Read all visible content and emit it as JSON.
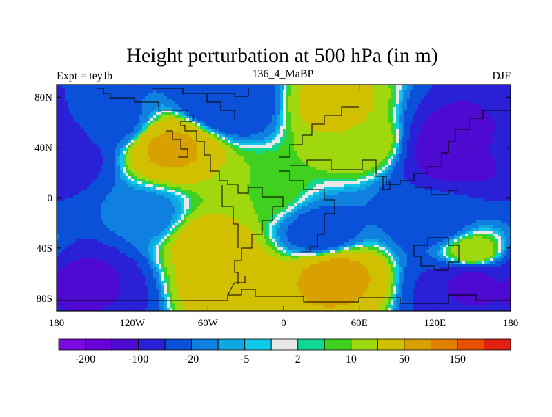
{
  "chart_data": {
    "type": "heatmap",
    "title": "Height perturbation at 500 hPa (in m)",
    "left_label": "Expt = teyJb",
    "center_label": "136_4_MaBP",
    "right_label": "DJF",
    "x_ticks": [
      {
        "value": -180,
        "label": "180"
      },
      {
        "value": -120,
        "label": "120W"
      },
      {
        "value": -60,
        "label": "60W"
      },
      {
        "value": 0,
        "label": "0"
      },
      {
        "value": 60,
        "label": "60E"
      },
      {
        "value": 120,
        "label": "120E"
      },
      {
        "value": 180,
        "label": "180"
      }
    ],
    "y_ticks": [
      {
        "value": 80,
        "label": "80N"
      },
      {
        "value": 40,
        "label": "40N"
      },
      {
        "value": 0,
        "label": "0"
      },
      {
        "value": -40,
        "label": "40S"
      },
      {
        "value": -80,
        "label": "80S"
      }
    ],
    "xlim": [
      -180,
      180
    ],
    "ylim": [
      -90,
      90
    ],
    "colorbar": {
      "colors": [
        "#7a0ae0",
        "#6a00d8",
        "#4e0ad0",
        "#2a20d8",
        "#0a50d8",
        "#1080e0",
        "#10a8e0",
        "#10c8e8",
        "#e8e8e8",
        "#10d890",
        "#40d020",
        "#a0d810",
        "#d0c000",
        "#d8a000",
        "#e08000",
        "#e85000",
        "#e02010"
      ],
      "tick_labels": [
        {
          "after_box": 1,
          "label": "-200"
        },
        {
          "after_box": 3,
          "label": "-100"
        },
        {
          "after_box": 5,
          "label": "-20"
        },
        {
          "after_box": 7,
          "label": "-5"
        },
        {
          "after_box": 9,
          "label": "2"
        },
        {
          "after_box": 11,
          "label": "10"
        },
        {
          "after_box": 13,
          "label": "50"
        },
        {
          "after_box": 15,
          "label": "150"
        }
      ]
    },
    "field_centers": [
      {
        "lon": -90,
        "lat": 40,
        "value": 55
      },
      {
        "lon": 140,
        "lat": 40,
        "value": -150
      },
      {
        "lon": -180,
        "lat": 40,
        "value": -90
      },
      {
        "lon": -45,
        "lat": 75,
        "value": -45
      },
      {
        "lon": 40,
        "lat": 75,
        "value": 25
      },
      {
        "lon": 60,
        "lat": 45,
        "value": 20
      },
      {
        "lon": -135,
        "lat": 60,
        "value": -25
      },
      {
        "lon": -60,
        "lat": -35,
        "value": 30
      },
      {
        "lon": 30,
        "lat": -30,
        "value": -30
      },
      {
        "lon": 120,
        "lat": -20,
        "value": -30
      },
      {
        "lon": 150,
        "lat": -45,
        "value": 20
      },
      {
        "lon": -160,
        "lat": -65,
        "value": -110
      },
      {
        "lon": 150,
        "lat": -65,
        "value": -110
      },
      {
        "lon": -40,
        "lat": -65,
        "value": 40
      },
      {
        "lon": 40,
        "lat": -60,
        "value": 60
      },
      {
        "lon": -110,
        "lat": -15,
        "value": -15
      },
      {
        "lon": -20,
        "lat": 5,
        "value": 10
      }
    ]
  }
}
